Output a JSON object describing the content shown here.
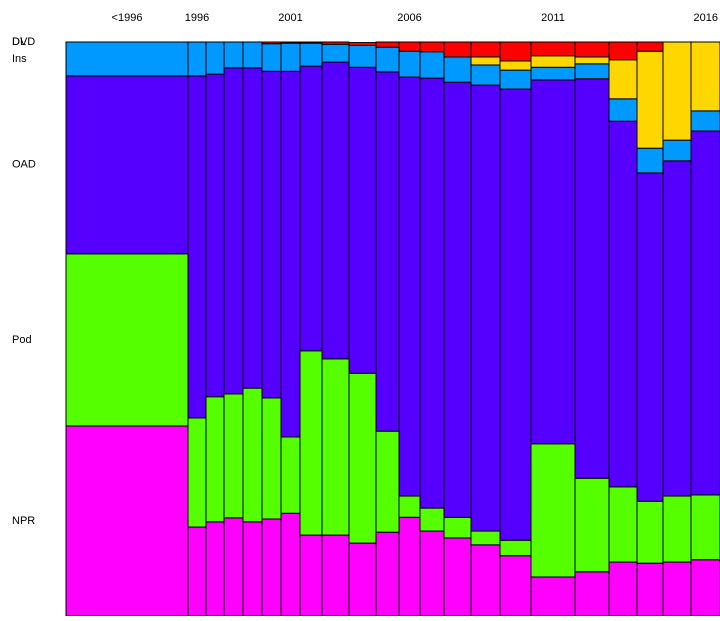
{
  "chart_data": {
    "type": "mosaic",
    "categories": [
      "<1996",
      "1996",
      null,
      null,
      null,
      null,
      "2001",
      null,
      null,
      null,
      null,
      "2006",
      null,
      null,
      null,
      null,
      "2011",
      null,
      null,
      null,
      null,
      "2016"
    ],
    "widths": [
      122,
      18,
      18,
      19,
      19,
      19,
      19,
      22,
      27,
      27,
      23,
      21,
      24,
      27,
      29,
      31,
      44,
      34,
      28,
      26,
      28,
      29
    ],
    "ylim": [
      0,
      100
    ],
    "series": [
      {
        "name": "NPR",
        "color": "#ff00ff",
        "values": [
          33.1,
          15.5,
          16.4,
          17.1,
          16.4,
          16.9,
          17.9,
          14.1,
          14.1,
          12.7,
          14.6,
          17.2,
          14.8,
          13.6,
          12.4,
          10.5,
          6.8,
          7.7,
          9.4,
          9.2,
          9.4,
          9.8
        ]
      },
      {
        "name": "Pod",
        "color": "#55ff00",
        "values": [
          30.0,
          19.0,
          21.8,
          21.6,
          23.3,
          21.1,
          13.3,
          32.1,
          30.7,
          29.6,
          17.6,
          3.7,
          4.0,
          3.6,
          2.4,
          2.7,
          23.2,
          16.3,
          13.1,
          10.8,
          11.5,
          11.3
        ]
      },
      {
        "name": "OAD",
        "color": "#5500ff",
        "values": [
          31.0,
          59.6,
          56.2,
          56.8,
          55.8,
          56.9,
          63.7,
          49.6,
          51.7,
          53.3,
          62.6,
          73.0,
          74.9,
          75.8,
          77.7,
          78.6,
          63.4,
          69.6,
          63.7,
          57.2,
          58.4,
          63.4
        ]
      },
      {
        "name": "Ins",
        "color": "#0099ff",
        "values": [
          5.9,
          5.9,
          5.6,
          4.5,
          4.5,
          4.8,
          4.9,
          4.0,
          3.1,
          3.8,
          4.3,
          4.5,
          4.6,
          4.4,
          3.5,
          3.3,
          2.2,
          2.6,
          3.9,
          4.3,
          3.6,
          3.5
        ]
      },
      {
        "name": "DL",
        "color": "#ffd700",
        "values": [
          0,
          0,
          0,
          0,
          0,
          0,
          0,
          0,
          0,
          0,
          0,
          0,
          0,
          0,
          1.4,
          1.6,
          2.0,
          1.2,
          6.8,
          16.9,
          17.1,
          12.0
        ]
      },
      {
        "name": "DVD",
        "color": "#ff0000",
        "values": [
          0,
          0,
          0,
          0,
          0,
          0.3,
          0.2,
          0.2,
          0.4,
          0.5,
          0.9,
          1.6,
          1.7,
          2.6,
          2.6,
          3.3,
          2.4,
          2.6,
          3.1,
          1.6,
          0,
          0
        ]
      }
    ]
  }
}
